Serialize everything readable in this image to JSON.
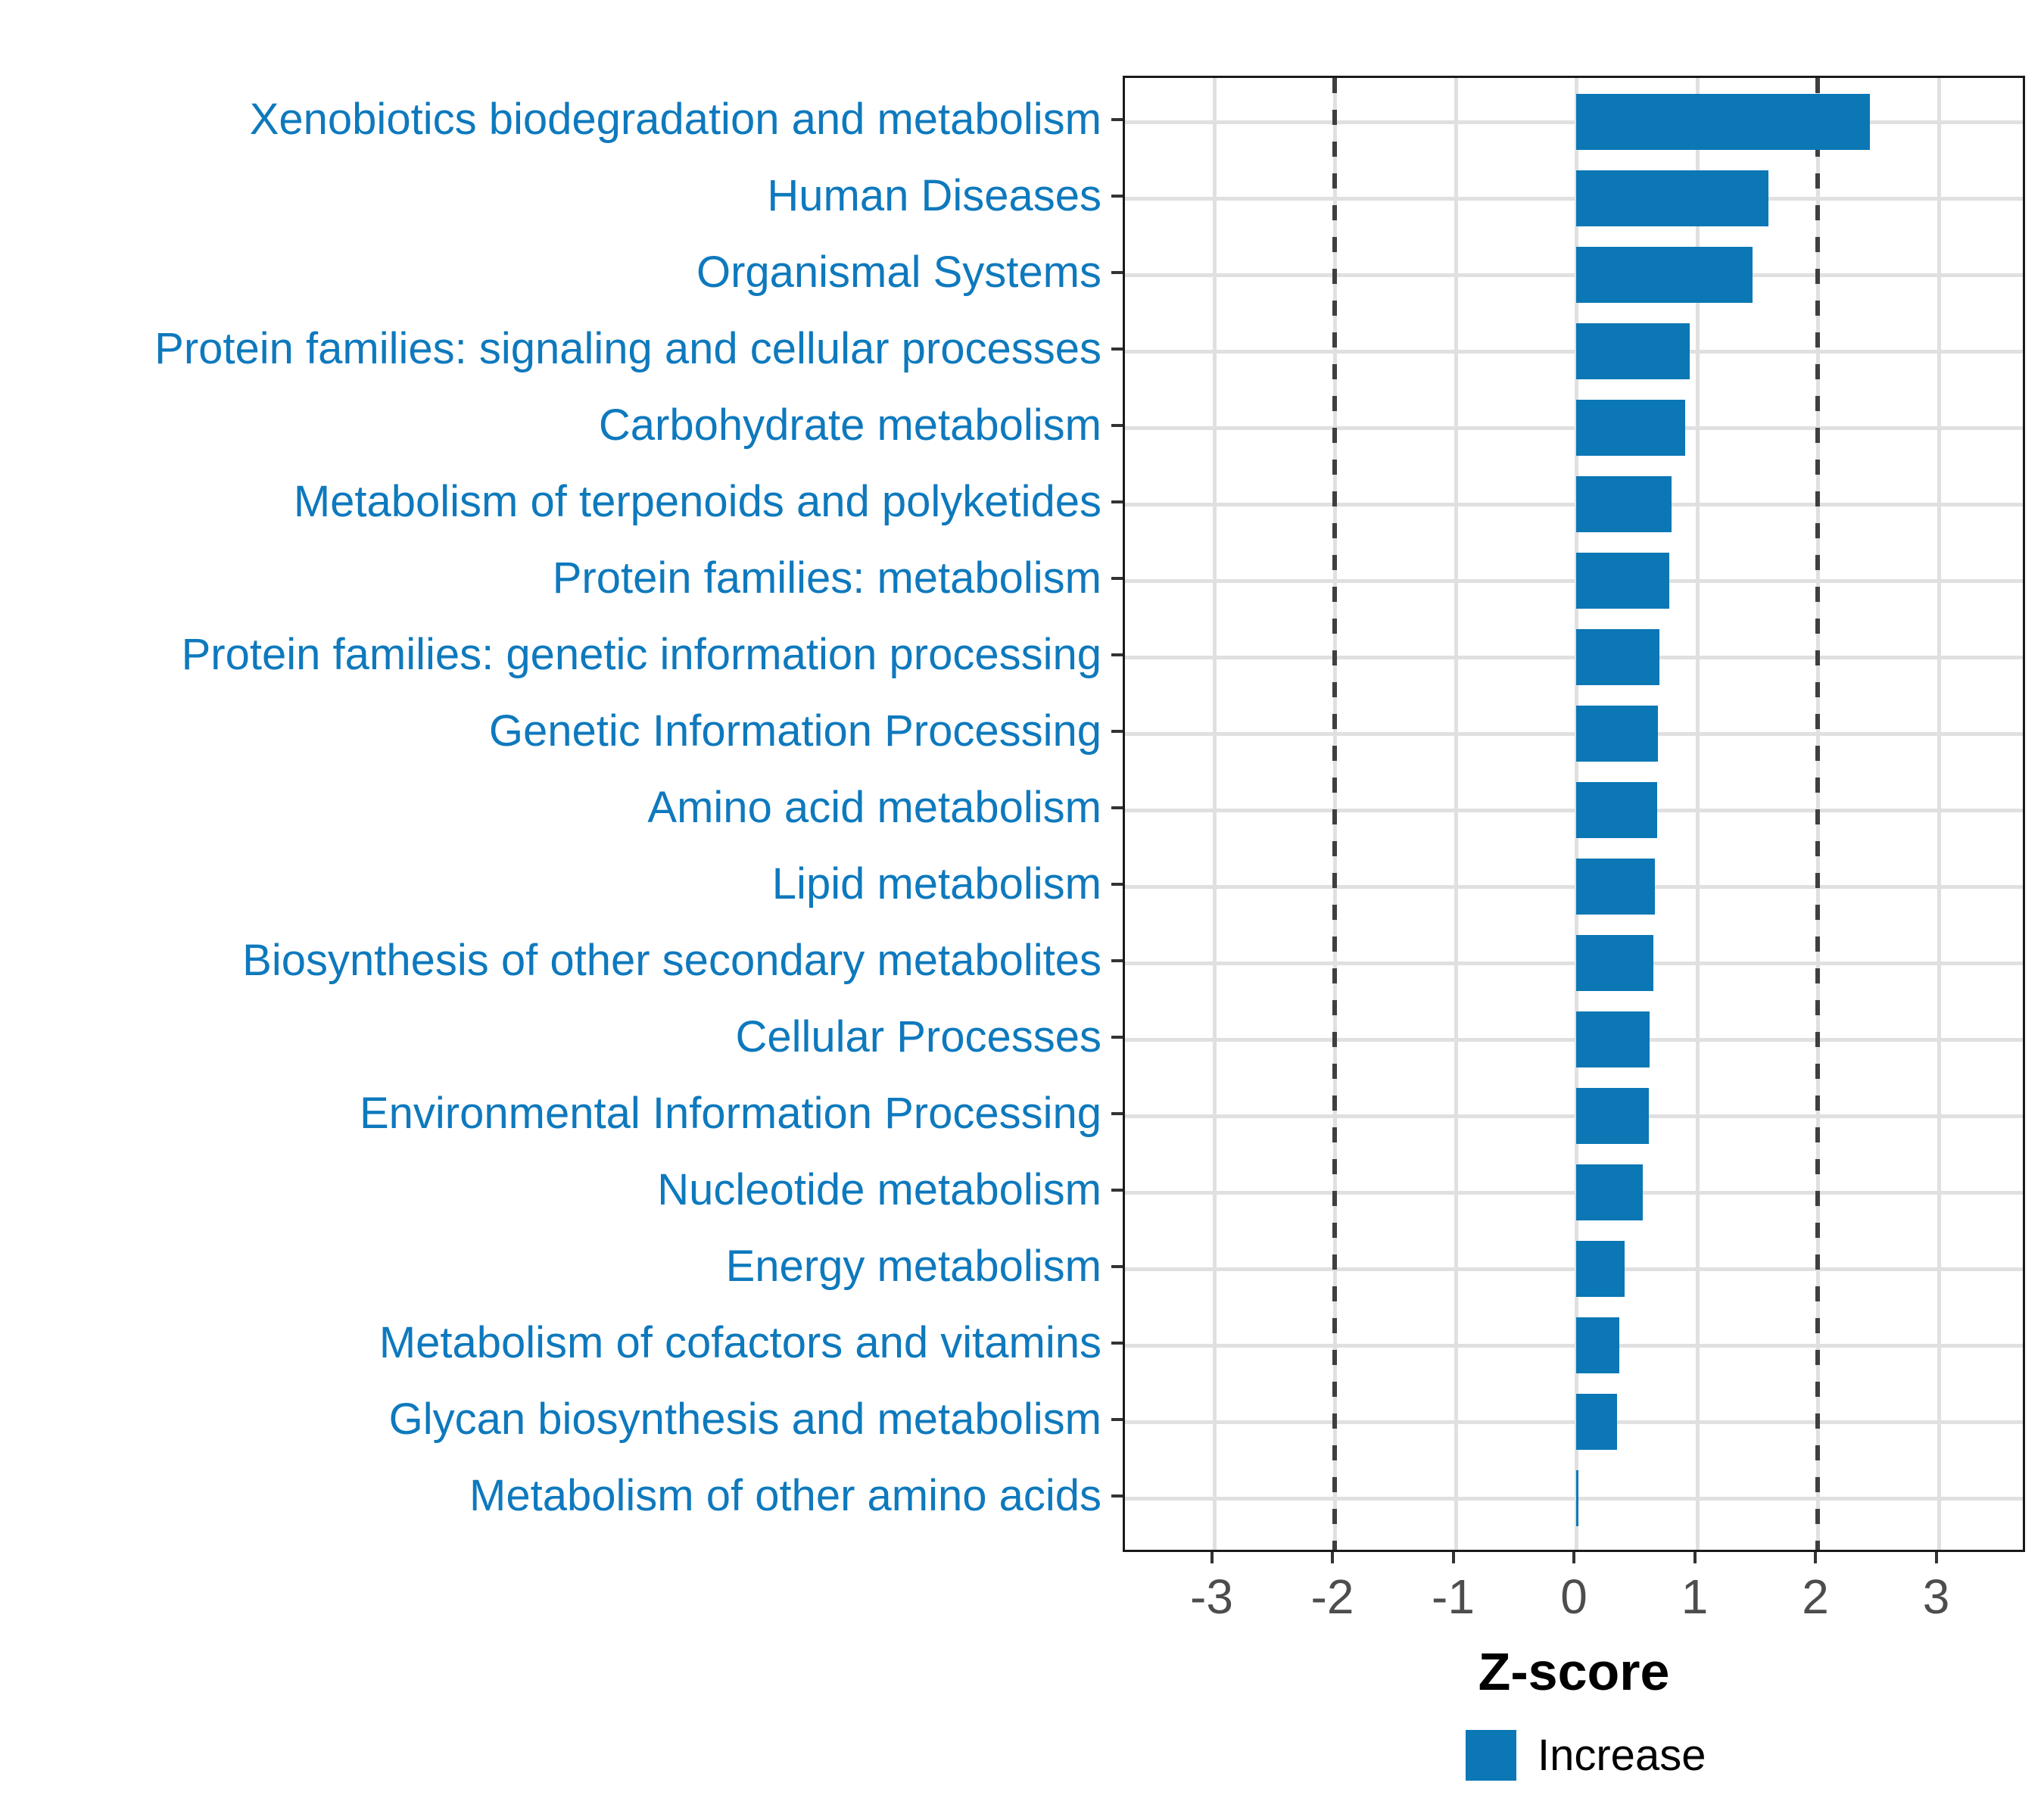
{
  "chart_data": {
    "type": "bar",
    "orientation": "horizontal",
    "title": "",
    "xlabel": "Z-score",
    "ylabel": "",
    "categories": [
      "Xenobiotics biodegradation and metabolism",
      "Human Diseases",
      "Organismal Systems",
      "Protein families: signaling and cellular processes",
      "Carbohydrate metabolism",
      "Metabolism of terpenoids and polyketides",
      "Protein families: metabolism",
      "Protein families: genetic information processing",
      "Genetic Information Processing",
      "Amino acid metabolism",
      "Lipid metabolism",
      "Biosynthesis of other secondary metabolites",
      "Cellular Processes",
      "Environmental Information Processing",
      "Nucleotide metabolism",
      "Energy metabolism",
      "Metabolism of cofactors and vitamins",
      "Glycan biosynthesis and metabolism",
      "Metabolism of other amino acids"
    ],
    "values": [
      2.43,
      1.59,
      1.46,
      0.94,
      0.9,
      0.79,
      0.77,
      0.69,
      0.68,
      0.67,
      0.65,
      0.64,
      0.61,
      0.6,
      0.55,
      0.4,
      0.36,
      0.34,
      0.02
    ],
    "x_ticks": [
      -3,
      -2,
      -1,
      0,
      1,
      2,
      3
    ],
    "x_tick_labels": [
      "-3",
      "-2",
      "-1",
      "0",
      "1",
      "2",
      "3"
    ],
    "xlim": [
      -3.74,
      3.74
    ],
    "reference_lines": [
      -2,
      2
    ],
    "grid": true,
    "legend": {
      "label": "Increase",
      "position": "bottom"
    },
    "colors": {
      "bar": "#0b77b5",
      "category_label": "#0e79bd",
      "gridline": "#e0e0e0",
      "dashed_line": "#3f3f3f",
      "tick_label": "#4d4d4d",
      "panel_border": "#1a1a1a"
    }
  }
}
